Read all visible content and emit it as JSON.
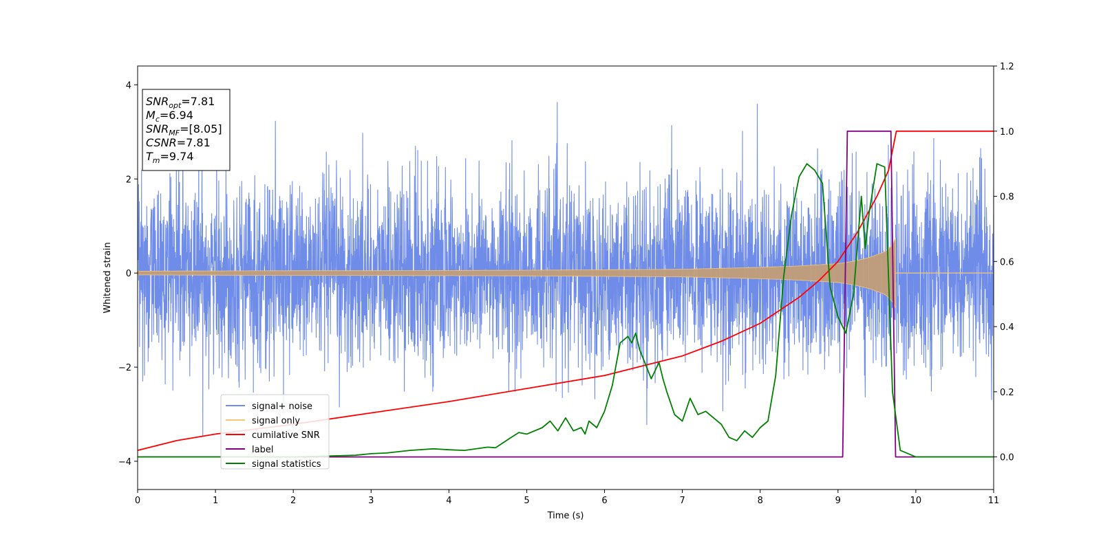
{
  "chart_data": {
    "type": "line",
    "title": "",
    "xlabel": "Time (s)",
    "ylabel": "Whitened strain",
    "y2label": "",
    "xlim": [
      0,
      11
    ],
    "ylim": [
      -4.6,
      4.4
    ],
    "y2lim": [
      -0.1,
      1.2
    ],
    "x_ticks": [
      0,
      1,
      2,
      3,
      4,
      5,
      6,
      7,
      8,
      9,
      10,
      11
    ],
    "y_ticks": [
      -4,
      -2,
      0,
      2,
      4
    ],
    "y2_ticks": [
      0.0,
      0.2,
      0.4,
      0.6,
      0.8,
      1.0,
      1.2
    ],
    "y2_tick_labels": [
      "0.0",
      "0.2",
      "0.4",
      "0.6",
      "0.8",
      "1.0",
      "1.2"
    ],
    "grid": false,
    "legend_position": "lower-left",
    "colors": {
      "signal_noise": "#6f8de8",
      "signal_only": "#f6c77a",
      "signal_only_fill": "#c19e78",
      "cumulative_snr": "#ff0000",
      "label": "#800080",
      "signal_statistics": "#008000"
    },
    "series": [
      {
        "name": "signal+ noise",
        "axis": "left",
        "noise_std": 1.0,
        "x_range": [
          0,
          11
        ],
        "note_visible_envelope": "dense noise mostly within about -2.3 to 2.4, peaks near 4.0 and -4.15"
      },
      {
        "name": "signal only",
        "axis": "left",
        "envelope": {
          "x": [
            0,
            1,
            2,
            3,
            4,
            5,
            6,
            7,
            8,
            8.5,
            9,
            9.2,
            9.4,
            9.6,
            9.7,
            9.74,
            11
          ],
          "y": [
            0.04,
            0.045,
            0.05,
            0.05,
            0.055,
            0.06,
            0.07,
            0.08,
            0.12,
            0.15,
            0.2,
            0.25,
            0.33,
            0.45,
            0.6,
            0.75,
            0.0
          ]
        },
        "end_time": 9.74
      },
      {
        "name": "cumilative SNR",
        "axis": "right",
        "x": [
          0,
          0.5,
          1,
          2,
          3,
          4,
          5,
          6,
          6.5,
          7,
          7.5,
          8,
          8.5,
          8.75,
          9,
          9.25,
          9.5,
          9.65,
          9.75,
          11
        ],
        "y": [
          0.02,
          0.05,
          0.07,
          0.1,
          0.135,
          0.17,
          0.21,
          0.25,
          0.28,
          0.31,
          0.355,
          0.41,
          0.49,
          0.54,
          0.6,
          0.69,
          0.8,
          0.88,
          1.0,
          1.0
        ]
      },
      {
        "name": "label",
        "axis": "right",
        "x": [
          0,
          9.06,
          9.12,
          9.68,
          9.74,
          11
        ],
        "y": [
          0,
          0,
          1.0,
          1.0,
          0,
          0
        ]
      },
      {
        "name": "signal statistics",
        "axis": "right",
        "x": [
          0,
          1,
          2,
          2.5,
          2.8,
          3,
          3.2,
          3.5,
          3.8,
          4.0,
          4.2,
          4.5,
          4.6,
          4.8,
          4.9,
          5.0,
          5.2,
          5.3,
          5.4,
          5.5,
          5.6,
          5.7,
          5.75,
          5.8,
          5.9,
          6.0,
          6.1,
          6.2,
          6.3,
          6.35,
          6.4,
          6.45,
          6.5,
          6.6,
          6.7,
          6.75,
          6.8,
          6.9,
          7.0,
          7.1,
          7.2,
          7.3,
          7.5,
          7.6,
          7.7,
          7.8,
          7.9,
          8.0,
          8.1,
          8.2,
          8.3,
          8.4,
          8.5,
          8.6,
          8.7,
          8.8,
          8.9,
          9.0,
          9.1,
          9.2,
          9.3,
          9.35,
          9.4,
          9.5,
          9.6,
          9.7,
          9.8,
          10.0,
          11.0
        ],
        "y": [
          0,
          0,
          0,
          0.003,
          0.005,
          0.01,
          0.012,
          0.02,
          0.025,
          0.022,
          0.02,
          0.03,
          0.028,
          0.06,
          0.075,
          0.07,
          0.09,
          0.11,
          0.08,
          0.12,
          0.08,
          0.09,
          0.07,
          0.11,
          0.09,
          0.14,
          0.22,
          0.35,
          0.37,
          0.35,
          0.38,
          0.33,
          0.3,
          0.24,
          0.29,
          0.24,
          0.2,
          0.13,
          0.11,
          0.18,
          0.13,
          0.14,
          0.1,
          0.06,
          0.05,
          0.08,
          0.06,
          0.09,
          0.11,
          0.25,
          0.55,
          0.74,
          0.86,
          0.9,
          0.88,
          0.84,
          0.52,
          0.43,
          0.38,
          0.5,
          0.8,
          0.64,
          0.75,
          0.9,
          0.89,
          0.2,
          0.02,
          0.0,
          0.0
        ]
      }
    ],
    "annotations": {
      "box_lines": [
        {
          "base": "SNR",
          "sub": "opt",
          "value": "=7.81"
        },
        {
          "base": "M",
          "sub": "c",
          "value": "=6.94"
        },
        {
          "base": "SNR",
          "sub": "MF",
          "value": "=[8.05]"
        },
        {
          "base": "CSNR",
          "sub": "",
          "value": "=7.81"
        },
        {
          "base": "T",
          "sub": "m",
          "value": "=9.74"
        }
      ]
    }
  }
}
